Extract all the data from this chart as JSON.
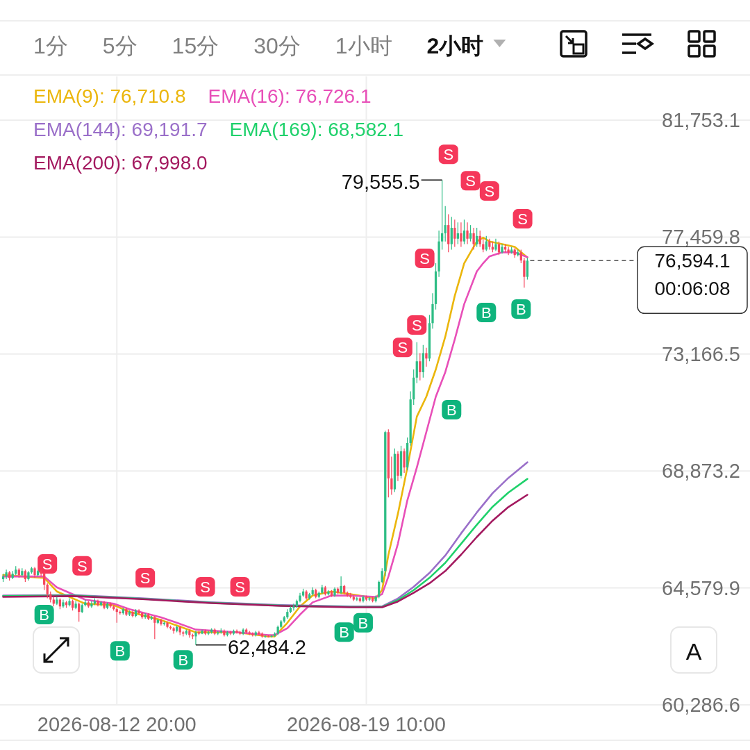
{
  "chart_data": {
    "type": "candlestick",
    "xlim": [
      "2026-08-09T18:00",
      "2026-08-29T13:00"
    ],
    "ylim": [
      60286.6,
      83359
    ],
    "xticks": [
      {
        "value": "2026-08-12T20:00",
        "label": "2026-08-12 20:00"
      },
      {
        "value": "2026-08-19T10:00",
        "label": "2026-08-19 10:00"
      }
    ],
    "yticks": [
      {
        "value": 60286.6,
        "label": "60,286.6"
      },
      {
        "value": 64579.9,
        "label": "64,579.9"
      },
      {
        "value": 68873.2,
        "label": "68,873.2"
      },
      {
        "value": 73166.5,
        "label": "73,166.5"
      },
      {
        "value": 77459.8,
        "label": "77,459.8"
      },
      {
        "value": 81753.1,
        "label": "81,753.1"
      }
    ],
    "grid": true,
    "legend": "top left",
    "x": [
      "2026-08-09T20:00",
      "2026-08-09T22:00",
      "2026-08-10T00:00",
      "2026-08-10T02:00",
      "2026-08-10T04:00",
      "2026-08-10T06:00",
      "2026-08-10T08:00",
      "2026-08-10T10:00",
      "2026-08-10T12:00",
      "2026-08-10T14:00",
      "2026-08-10T16:00",
      "2026-08-10T18:00",
      "2026-08-10T20:00",
      "2026-08-10T22:00",
      "2026-08-11T00:00",
      "2026-08-11T02:00",
      "2026-08-11T04:00",
      "2026-08-11T06:00",
      "2026-08-11T08:00",
      "2026-08-11T10:00",
      "2026-08-11T12:00",
      "2026-08-11T14:00",
      "2026-08-11T16:00",
      "2026-08-11T18:00",
      "2026-08-11T20:00",
      "2026-08-11T22:00",
      "2026-08-12T00:00",
      "2026-08-12T02:00",
      "2026-08-12T04:00",
      "2026-08-12T06:00",
      "2026-08-12T08:00",
      "2026-08-12T10:00",
      "2026-08-12T12:00",
      "2026-08-12T14:00",
      "2026-08-12T16:00",
      "2026-08-12T18:00",
      "2026-08-12T20:00",
      "2026-08-12T22:00",
      "2026-08-13T00:00",
      "2026-08-13T02:00",
      "2026-08-13T04:00",
      "2026-08-13T06:00",
      "2026-08-13T08:00",
      "2026-08-13T10:00",
      "2026-08-13T12:00",
      "2026-08-13T14:00",
      "2026-08-13T16:00",
      "2026-08-13T18:00",
      "2026-08-13T20:00",
      "2026-08-13T22:00",
      "2026-08-14T00:00",
      "2026-08-14T02:00",
      "2026-08-14T04:00",
      "2026-08-14T06:00",
      "2026-08-14T08:00",
      "2026-08-14T10:00",
      "2026-08-14T12:00",
      "2026-08-14T14:00",
      "2026-08-14T16:00",
      "2026-08-14T18:00",
      "2026-08-14T20:00",
      "2026-08-14T22:00",
      "2026-08-15T00:00",
      "2026-08-15T02:00",
      "2026-08-15T04:00",
      "2026-08-15T06:00",
      "2026-08-15T08:00",
      "2026-08-15T10:00",
      "2026-08-15T12:00",
      "2026-08-15T14:00",
      "2026-08-15T16:00",
      "2026-08-15T18:00",
      "2026-08-15T20:00",
      "2026-08-15T22:00",
      "2026-08-16T00:00",
      "2026-08-16T02:00",
      "2026-08-16T04:00",
      "2026-08-16T06:00",
      "2026-08-16T08:00",
      "2026-08-16T10:00",
      "2026-08-16T12:00",
      "2026-08-16T14:00",
      "2026-08-16T16:00",
      "2026-08-16T18:00",
      "2026-08-16T20:00",
      "2026-08-16T22:00",
      "2026-08-17T00:00",
      "2026-08-17T02:00",
      "2026-08-17T04:00",
      "2026-08-17T06:00",
      "2026-08-17T08:00",
      "2026-08-17T10:00",
      "2026-08-17T12:00",
      "2026-08-17T14:00",
      "2026-08-17T16:00",
      "2026-08-17T18:00",
      "2026-08-17T20:00",
      "2026-08-17T22:00",
      "2026-08-18T00:00",
      "2026-08-18T02:00",
      "2026-08-18T04:00",
      "2026-08-18T06:00",
      "2026-08-18T08:00",
      "2026-08-18T10:00",
      "2026-08-18T12:00",
      "2026-08-18T14:00",
      "2026-08-18T16:00",
      "2026-08-18T18:00",
      "2026-08-18T20:00",
      "2026-08-18T22:00",
      "2026-08-19T00:00",
      "2026-08-19T02:00",
      "2026-08-19T04:00",
      "2026-08-19T06:00",
      "2026-08-19T08:00",
      "2026-08-19T10:00",
      "2026-08-19T12:00",
      "2026-08-19T14:00",
      "2026-08-19T16:00",
      "2026-08-19T18:00",
      "2026-08-19T20:00",
      "2026-08-19T22:00",
      "2026-08-20T00:00",
      "2026-08-20T02:00",
      "2026-08-20T04:00",
      "2026-08-20T06:00",
      "2026-08-20T08:00",
      "2026-08-20T10:00",
      "2026-08-20T12:00",
      "2026-08-20T14:00",
      "2026-08-20T16:00",
      "2026-08-20T18:00",
      "2026-08-20T20:00",
      "2026-08-20T22:00",
      "2026-08-21T00:00",
      "2026-08-21T02:00",
      "2026-08-21T04:00",
      "2026-08-21T06:00",
      "2026-08-21T08:00",
      "2026-08-21T10:00",
      "2026-08-21T12:00",
      "2026-08-21T14:00",
      "2026-08-21T16:00",
      "2026-08-21T18:00",
      "2026-08-21T20:00",
      "2026-08-21T22:00",
      "2026-08-22T00:00",
      "2026-08-22T02:00",
      "2026-08-22T04:00",
      "2026-08-22T06:00",
      "2026-08-22T08:00",
      "2026-08-22T10:00",
      "2026-08-22T12:00",
      "2026-08-22T14:00",
      "2026-08-22T16:00",
      "2026-08-22T18:00",
      "2026-08-22T20:00",
      "2026-08-22T22:00",
      "2026-08-23T00:00",
      "2026-08-23T02:00",
      "2026-08-23T04:00",
      "2026-08-23T06:00",
      "2026-08-23T08:00",
      "2026-08-23T10:00",
      "2026-08-23T12:00",
      "2026-08-23T14:00",
      "2026-08-23T16:00"
    ],
    "ohlc": [
      [
        64900,
        65100,
        64800,
        65000
      ],
      [
        65000,
        65250,
        64900,
        65150
      ],
      [
        65150,
        65200,
        64850,
        64950
      ],
      [
        64950,
        65200,
        64900,
        65100
      ],
      [
        65100,
        65380,
        65050,
        65250
      ],
      [
        65250,
        65300,
        64950,
        65050
      ],
      [
        65050,
        65300,
        65000,
        65200
      ],
      [
        65200,
        65250,
        64800,
        64900
      ],
      [
        64900,
        65200,
        64850,
        65150
      ],
      [
        65150,
        65350,
        65100,
        65300
      ],
      [
        65300,
        65350,
        64950,
        65050
      ],
      [
        65050,
        65250,
        65000,
        65200
      ],
      [
        65200,
        65250,
        65000,
        65100
      ],
      [
        65100,
        65150,
        64500,
        64700
      ],
      [
        64700,
        64750,
        64200,
        64350
      ],
      [
        64350,
        64450,
        64050,
        64150
      ],
      [
        64150,
        64250,
        63900,
        64000
      ],
      [
        64000,
        64250,
        63950,
        64150
      ],
      [
        64150,
        64200,
        63800,
        63900
      ],
      [
        63900,
        64150,
        63850,
        64050
      ],
      [
        64050,
        64100,
        63850,
        63950
      ],
      [
        63950,
        64200,
        63900,
        64100
      ],
      [
        64100,
        64150,
        63750,
        63850
      ],
      [
        63850,
        64100,
        63800,
        64000
      ],
      [
        64000,
        64050,
        63340,
        63700
      ],
      [
        63700,
        64000,
        63650,
        63950
      ],
      [
        63950,
        64150,
        63900,
        64050
      ],
      [
        64050,
        64100,
        63850,
        63900
      ],
      [
        63900,
        64100,
        63850,
        64000
      ],
      [
        64000,
        64200,
        63950,
        64100
      ],
      [
        64100,
        64150,
        63900,
        63950
      ],
      [
        63950,
        64100,
        63900,
        64050
      ],
      [
        64050,
        64100,
        63800,
        63850
      ],
      [
        63850,
        64050,
        63800,
        64000
      ],
      [
        64000,
        64050,
        63850,
        63900
      ],
      [
        63900,
        63950,
        63750,
        63800
      ],
      [
        63800,
        63850,
        63300,
        63700
      ],
      [
        63700,
        63750,
        63600,
        63650
      ],
      [
        63650,
        63850,
        63600,
        63800
      ],
      [
        63800,
        63850,
        63550,
        63600
      ],
      [
        63600,
        63750,
        63550,
        63700
      ],
      [
        63700,
        63750,
        63500,
        63550
      ],
      [
        63550,
        63800,
        63500,
        63750
      ],
      [
        63750,
        63800,
        63600,
        63650
      ],
      [
        63650,
        63700,
        63450,
        63500
      ],
      [
        63500,
        63650,
        63450,
        63600
      ],
      [
        63600,
        63650,
        63400,
        63450
      ],
      [
        63450,
        63550,
        63400,
        63500
      ],
      [
        63500,
        63550,
        62700,
        63300
      ],
      [
        63300,
        63450,
        63250,
        63400
      ],
      [
        63400,
        63450,
        63200,
        63250
      ],
      [
        63250,
        63350,
        63200,
        63300
      ],
      [
        63300,
        63350,
        63100,
        63150
      ],
      [
        63150,
        63200,
        63050,
        63100
      ],
      [
        63100,
        63150,
        62900,
        63000
      ],
      [
        63000,
        63200,
        62950,
        63150
      ],
      [
        63150,
        63200,
        62850,
        62950
      ],
      [
        62950,
        63000,
        62800,
        62900
      ],
      [
        62900,
        63050,
        62850,
        63000
      ],
      [
        63000,
        63050,
        62750,
        62850
      ],
      [
        62850,
        62900,
        62700,
        62800
      ],
      [
        62800,
        63000,
        62484.2,
        62950
      ],
      [
        62950,
        63000,
        62850,
        62900
      ],
      [
        62900,
        63050,
        62880,
        63000
      ],
      [
        63000,
        63050,
        62850,
        62900
      ],
      [
        62900,
        63000,
        62850,
        62950
      ],
      [
        62950,
        63100,
        62900,
        63050
      ],
      [
        63050,
        63100,
        62850,
        62900
      ],
      [
        62900,
        63000,
        62850,
        62950
      ],
      [
        62950,
        63100,
        62900,
        63000
      ],
      [
        63000,
        63050,
        62800,
        62850
      ],
      [
        62850,
        63000,
        62800,
        62950
      ],
      [
        62950,
        63000,
        62850,
        62900
      ],
      [
        62900,
        63050,
        62850,
        63000
      ],
      [
        63000,
        63050,
        62900,
        62950
      ],
      [
        62950,
        63000,
        62850,
        62900
      ],
      [
        62900,
        63100,
        62850,
        63050
      ],
      [
        63050,
        63100,
        62900,
        62950
      ],
      [
        62950,
        63000,
        62850,
        62900
      ],
      [
        62900,
        62950,
        62800,
        62850
      ],
      [
        62850,
        63000,
        62800,
        62950
      ],
      [
        62950,
        63000,
        62850,
        62900
      ],
      [
        62900,
        62950,
        62750,
        62800
      ],
      [
        62800,
        62850,
        62750,
        62800
      ],
      [
        62800,
        62850,
        62760,
        62790
      ],
      [
        62790,
        62850,
        62760,
        62820
      ],
      [
        62820,
        62950,
        62780,
        62900
      ],
      [
        62900,
        63200,
        62850,
        63150
      ],
      [
        63150,
        63400,
        63100,
        63350
      ],
      [
        63350,
        63550,
        63300,
        63500
      ],
      [
        63500,
        63800,
        63450,
        63700
      ],
      [
        63700,
        63900,
        63650,
        63850
      ],
      [
        63850,
        64000,
        63750,
        63900
      ],
      [
        63900,
        64150,
        63850,
        64100
      ],
      [
        64100,
        64400,
        64050,
        64300
      ],
      [
        64300,
        64550,
        64250,
        64450
      ],
      [
        64450,
        64500,
        64150,
        64200
      ],
      [
        64200,
        64400,
        64150,
        64350
      ],
      [
        64350,
        64600,
        64300,
        64500
      ],
      [
        64500,
        64550,
        64200,
        64250
      ],
      [
        64250,
        64450,
        64200,
        64400
      ],
      [
        64400,
        64700,
        64350,
        64600
      ],
      [
        64600,
        64650,
        64300,
        64350
      ],
      [
        64350,
        64500,
        64300,
        64450
      ],
      [
        64450,
        64500,
        64250,
        64300
      ],
      [
        64300,
        64600,
        64250,
        64550
      ],
      [
        64550,
        64600,
        64350,
        64400
      ],
      [
        64400,
        65000,
        64350,
        64650
      ],
      [
        64650,
        64700,
        64350,
        64400
      ],
      [
        64400,
        64450,
        64250,
        64300
      ],
      [
        64300,
        64400,
        64200,
        64250
      ],
      [
        64250,
        64300,
        64100,
        64150
      ],
      [
        64150,
        64250,
        64100,
        64200
      ],
      [
        64200,
        64250,
        64050,
        64100
      ],
      [
        64100,
        64300,
        64050,
        64250
      ],
      [
        64250,
        64300,
        64100,
        64150
      ],
      [
        64150,
        64250,
        64100,
        64200
      ],
      [
        64200,
        64250,
        64050,
        64100
      ],
      [
        64100,
        64300,
        64050,
        64250
      ],
      [
        64250,
        64850,
        64200,
        64800
      ],
      [
        64800,
        65300,
        64750,
        65200
      ],
      [
        65200,
        70350,
        65000,
        70300
      ],
      [
        70300,
        70400,
        67900,
        68600
      ],
      [
        68600,
        69400,
        68000,
        68200
      ],
      [
        68200,
        69700,
        68100,
        69500
      ],
      [
        69500,
        69600,
        68500,
        68700
      ],
      [
        68700,
        69800,
        68600,
        69600
      ],
      [
        69600,
        69700,
        68800,
        69000
      ],
      [
        69000,
        70100,
        68900,
        69900
      ],
      [
        69900,
        71800,
        69800,
        71500
      ],
      [
        71500,
        72600,
        71300,
        72300
      ],
      [
        72300,
        73600,
        72100,
        72900
      ],
      [
        72900,
        73200,
        72200,
        72500
      ],
      [
        72500,
        73500,
        72300,
        73200
      ],
      [
        73200,
        73400,
        72700,
        73000
      ],
      [
        73000,
        74600,
        72900,
        74300
      ],
      [
        74300,
        75400,
        74100,
        75000
      ],
      [
        75000,
        76500,
        74800,
        76200
      ],
      [
        76200,
        77700,
        76000,
        77300
      ],
      [
        77300,
        79555.5,
        77000,
        77600
      ],
      [
        77600,
        78600,
        77300,
        77900
      ],
      [
        77900,
        78300,
        76900,
        77200
      ],
      [
        77200,
        78200,
        77000,
        77800
      ],
      [
        77800,
        78100,
        77100,
        77400
      ],
      [
        77400,
        78000,
        77200,
        77600
      ],
      [
        77600,
        78000,
        77100,
        77300
      ],
      [
        77300,
        78100,
        77200,
        77700
      ],
      [
        77700,
        78000,
        77200,
        77400
      ],
      [
        77400,
        77900,
        77300,
        77600
      ],
      [
        77600,
        77800,
        77000,
        77200
      ],
      [
        77200,
        77800,
        77100,
        77500
      ],
      [
        77500,
        77700,
        77100,
        77200
      ],
      [
        77200,
        77400,
        76900,
        77000
      ],
      [
        77000,
        77500,
        76950,
        77300
      ],
      [
        77300,
        77400,
        77000,
        77100
      ],
      [
        77100,
        77300,
        76900,
        77000
      ],
      [
        77000,
        77400,
        76950,
        77200
      ],
      [
        77200,
        77300,
        76800,
        76900
      ],
      [
        76900,
        77200,
        76850,
        77100
      ],
      [
        77100,
        77200,
        76900,
        77000
      ],
      [
        77000,
        77100,
        76800,
        76900
      ],
      [
        76900,
        77100,
        76850,
        77000
      ],
      [
        77000,
        77050,
        76700,
        76800
      ],
      [
        76800,
        77000,
        76750,
        76900
      ],
      [
        76900,
        77000,
        76500,
        76600
      ],
      [
        76600,
        76700,
        75600,
        76000
      ],
      [
        76000,
        76700,
        75900,
        76594.1
      ]
    ],
    "series": [
      {
        "type": "line",
        "name": "EMA(9): 76,710.8",
        "color": "#ebb60b",
        "x": [
          "2026-08-09T20:00",
          "2026-08-10T22:00",
          "2026-08-11T06:00",
          "2026-08-12T00:00",
          "2026-08-12T18:00",
          "2026-08-13T04:00",
          "2026-08-14T00:00",
          "2026-08-14T10:00",
          "2026-08-14T22:00",
          "2026-08-16T00:00",
          "2026-08-16T20:00",
          "2026-08-17T00:00",
          "2026-08-17T08:00",
          "2026-08-17T16:00",
          "2026-08-18T00:00",
          "2026-08-18T12:00",
          "2026-08-19T00:00",
          "2026-08-19T16:00",
          "2026-08-19T20:00",
          "2026-08-20T00:00",
          "2026-08-20T06:00",
          "2026-08-20T12:00",
          "2026-08-20T18:00",
          "2026-08-21T00:00",
          "2026-08-21T06:00",
          "2026-08-21T12:00",
          "2026-08-21T18:00",
          "2026-08-22T00:00",
          "2026-08-22T08:00",
          "2026-08-22T12:00",
          "2026-08-22T16:00",
          "2026-08-23T00:00",
          "2026-08-23T08:00",
          "2026-08-23T16:00"
        ],
        "values": [
          65050,
          64950,
          64450,
          64000,
          63950,
          63700,
          63400,
          63200,
          62950,
          62950,
          62800,
          62800,
          63300,
          63900,
          64300,
          64450,
          64350,
          64200,
          64500,
          65800,
          67300,
          69000,
          70870,
          71600,
          72600,
          73800,
          75300,
          76500,
          77300,
          77440,
          77300,
          77200,
          77100,
          76710.8
        ]
      },
      {
        "type": "line",
        "name": "EMA(16): 76,726.1",
        "color": "#e84fb8",
        "x": [
          "2026-08-09T20:00",
          "2026-08-10T22:00",
          "2026-08-11T06:00",
          "2026-08-12T00:00",
          "2026-08-12T18:00",
          "2026-08-13T04:00",
          "2026-08-14T00:00",
          "2026-08-14T10:00",
          "2026-08-14T22:00",
          "2026-08-16T00:00",
          "2026-08-16T20:00",
          "2026-08-17T00:00",
          "2026-08-17T08:00",
          "2026-08-17T16:00",
          "2026-08-18T00:00",
          "2026-08-18T12:00",
          "2026-08-19T00:00",
          "2026-08-19T16:00",
          "2026-08-19T20:00",
          "2026-08-20T00:00",
          "2026-08-20T06:00",
          "2026-08-20T12:00",
          "2026-08-20T18:00",
          "2026-08-21T00:00",
          "2026-08-21T06:00",
          "2026-08-21T12:00",
          "2026-08-21T18:00",
          "2026-08-22T00:00",
          "2026-08-22T08:00",
          "2026-08-22T12:00",
          "2026-08-22T16:00",
          "2026-08-23T00:00",
          "2026-08-23T08:00",
          "2026-08-23T16:00"
        ],
        "values": [
          65000,
          65000,
          64600,
          64150,
          64000,
          63800,
          63500,
          63300,
          63050,
          62950,
          62850,
          62850,
          63100,
          63600,
          64050,
          64300,
          64300,
          64250,
          64350,
          65000,
          66200,
          67800,
          69000,
          70300,
          71600,
          72500,
          73700,
          75000,
          76200,
          76500,
          76750,
          76900,
          76900,
          76726.1
        ]
      },
      {
        "type": "line",
        "name": "EMA(144): 69,191.7",
        "color": "#9a6fc9",
        "x": [
          "2026-08-09T20:00",
          "2026-08-11T16:00",
          "2026-08-13T12:00",
          "2026-08-15T08:00",
          "2026-08-17T04:00",
          "2026-08-19T00:00",
          "2026-08-19T20:00",
          "2026-08-20T06:00",
          "2026-08-20T16:00",
          "2026-08-21T02:00",
          "2026-08-21T12:00",
          "2026-08-21T22:00",
          "2026-08-22T08:00",
          "2026-08-22T18:00",
          "2026-08-23T04:00",
          "2026-08-23T16:00"
        ],
        "values": [
          64300,
          64320,
          64200,
          64050,
          63950,
          63900,
          63900,
          64190,
          64620,
          65130,
          65770,
          66580,
          67350,
          68060,
          68620,
          69191.7
        ]
      },
      {
        "type": "line",
        "name": "EMA(169): 68,582.1",
        "color": "#1fd16b",
        "x": [
          "2026-08-09T20:00",
          "2026-08-11T16:00",
          "2026-08-13T12:00",
          "2026-08-15T08:00",
          "2026-08-17T04:00",
          "2026-08-19T00:00",
          "2026-08-19T20:00",
          "2026-08-20T06:00",
          "2026-08-20T16:00",
          "2026-08-21T02:00",
          "2026-08-21T12:00",
          "2026-08-21T22:00",
          "2026-08-22T08:00",
          "2026-08-22T18:00",
          "2026-08-23T04:00",
          "2026-08-23T16:00"
        ],
        "values": [
          64280,
          64300,
          64180,
          64030,
          63930,
          63880,
          63880,
          64130,
          64500,
          64950,
          65500,
          66200,
          66900,
          67560,
          68080,
          68582.1
        ]
      },
      {
        "type": "line",
        "name": "EMA(200): 67,998.0",
        "color": "#a3195f",
        "x": [
          "2026-08-09T20:00",
          "2026-08-11T16:00",
          "2026-08-13T12:00",
          "2026-08-15T08:00",
          "2026-08-17T04:00",
          "2026-08-19T00:00",
          "2026-08-19T20:00",
          "2026-08-20T06:00",
          "2026-08-20T16:00",
          "2026-08-21T02:00",
          "2026-08-21T12:00",
          "2026-08-21T22:00",
          "2026-08-22T08:00",
          "2026-08-22T18:00",
          "2026-08-23T04:00",
          "2026-08-23T16:00"
        ],
        "values": [
          64250,
          64280,
          64170,
          64020,
          63920,
          63870,
          63870,
          64080,
          64400,
          64750,
          65200,
          65800,
          66450,
          67050,
          67550,
          67998.0
        ]
      },
      {
        "type": "scatter",
        "name": "S",
        "color": "#f5375a",
        "marker": "square",
        "x": [
          "2026-08-11T00:00",
          "2026-08-11T22:00",
          "2026-08-13T14:00",
          "2026-08-15T04:00",
          "2026-08-16T02:00",
          "2026-08-20T09:00",
          "2026-08-20T18:00",
          "2026-08-20T23:00",
          "2026-08-21T14:00",
          "2026-08-22T04:00",
          "2026-08-22T16:00",
          "2026-08-23T13:00"
        ],
        "values": [
          65460,
          65390,
          64950,
          64620,
          64620,
          73410,
          74230,
          76680,
          80500,
          79530,
          79150,
          78130
        ]
      },
      {
        "type": "scatter",
        "name": "B",
        "color": "#0fb47d",
        "marker": "square",
        "x": [
          "2026-08-10T22:00",
          "2026-08-12T22:00",
          "2026-08-14T14:00",
          "2026-08-18T20:00",
          "2026-08-19T08:00",
          "2026-08-21T16:00",
          "2026-08-22T14:00",
          "2026-08-23T12:00"
        ],
        "values": [
          63600,
          62270,
          61940,
          62960,
          63300,
          71120,
          74690,
          74820
        ]
      }
    ],
    "ref_lines": [
      {
        "axis": "y",
        "value": 76594.1,
        "label": "76,594.1\n00:06:08",
        "line_style": "dashed"
      }
    ],
    "annotations": [
      {
        "text": "79,555.5",
        "x": "2026-08-21T10:00",
        "y": 79555.5
      },
      {
        "text": "62,484.2",
        "x": "2026-08-14T22:00",
        "y": 62484.2
      },
      "1分",
      "5分",
      "15分",
      "30分",
      "1小时",
      "2小时",
      "A"
    ]
  }
}
